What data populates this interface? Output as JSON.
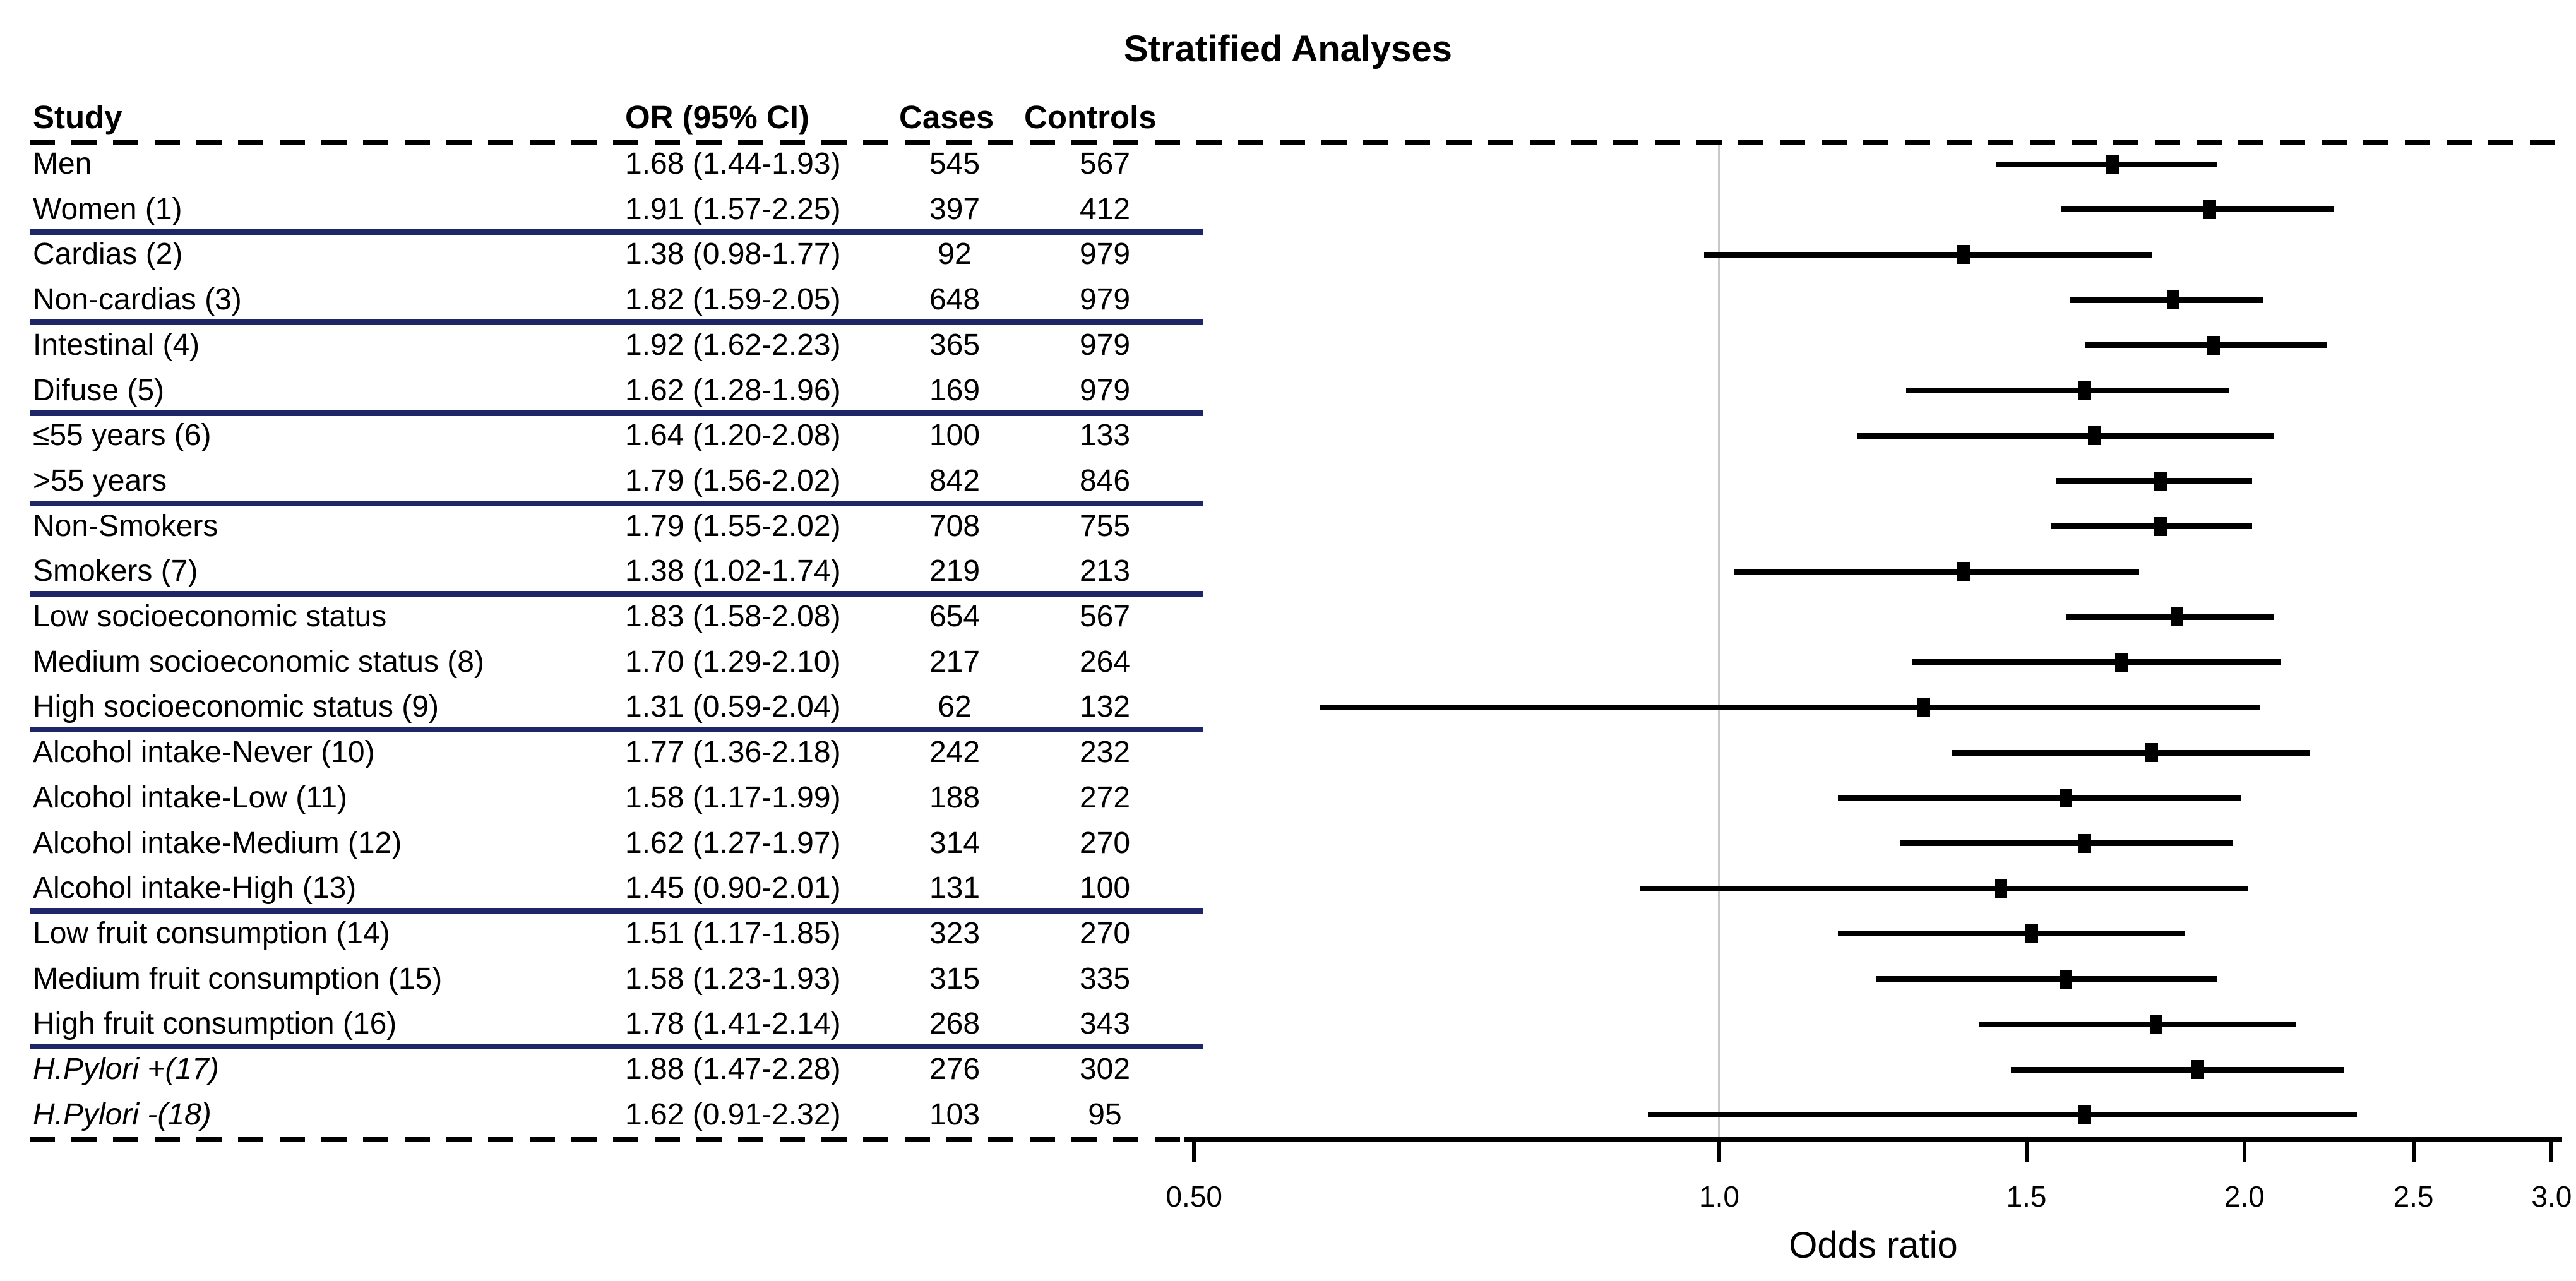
{
  "title": "Stratified Analyses",
  "columns": {
    "study": "Study",
    "or_ci": "OR (95% CI)",
    "cases": "Cases",
    "controls": "Controls"
  },
  "axis": {
    "label": "Odds ratio",
    "scale": "log",
    "min": 0.5,
    "max": 3.0,
    "reference_line": 1.0,
    "ticks": [
      {
        "value": 0.5,
        "label": "0.50"
      },
      {
        "value": 1.0,
        "label": "1.0"
      },
      {
        "value": 1.5,
        "label": "1.5"
      },
      {
        "value": 2.0,
        "label": "2.0"
      },
      {
        "value": 2.5,
        "label": "2.5"
      },
      {
        "value": 3.0,
        "label": "3.0"
      }
    ]
  },
  "colors": {
    "text": "#000000",
    "separator": "#1f2668",
    "reference_line": "#c8c8c8",
    "ci_line": "#000000",
    "marker": "#000000"
  },
  "chart_data": {
    "type": "forest",
    "title": "Stratified Analyses",
    "xlabel": "Odds ratio",
    "x_scale": "log",
    "xlim": [
      0.5,
      3.0
    ],
    "x_ticks": [
      0.5,
      1.0,
      1.5,
      2.0,
      2.5,
      3.0
    ],
    "reference_line": 1.0,
    "legend": "none",
    "rows": [
      {
        "label": "Men",
        "or": 1.68,
        "ci_low": 1.44,
        "ci_high": 1.93,
        "or_ci": "1.68 (1.44-1.93)",
        "cases": "545",
        "controls": "567",
        "italic": false,
        "separator_after": false
      },
      {
        "label": "Women (1)",
        "or": 1.91,
        "ci_low": 1.57,
        "ci_high": 2.25,
        "or_ci": "1.91 (1.57-2.25)",
        "cases": "397",
        "controls": "412",
        "italic": false,
        "separator_after": true
      },
      {
        "label": "Cardias (2)",
        "or": 1.38,
        "ci_low": 0.98,
        "ci_high": 1.77,
        "or_ci": "1.38 (0.98-1.77)",
        "cases": "92",
        "controls": "979",
        "italic": false,
        "separator_after": false
      },
      {
        "label": "Non-cardias (3)",
        "or": 1.82,
        "ci_low": 1.59,
        "ci_high": 2.05,
        "or_ci": "1.82 (1.59-2.05)",
        "cases": "648",
        "controls": "979",
        "italic": false,
        "separator_after": true
      },
      {
        "label": "Intestinal (4)",
        "or": 1.92,
        "ci_low": 1.62,
        "ci_high": 2.23,
        "or_ci": "1.92 (1.62-2.23)",
        "cases": "365",
        "controls": "979",
        "italic": false,
        "separator_after": false
      },
      {
        "label": "Difuse (5)",
        "or": 1.62,
        "ci_low": 1.28,
        "ci_high": 1.96,
        "or_ci": "1.62 (1.28-1.96)",
        "cases": "169",
        "controls": "979",
        "italic": false,
        "separator_after": true
      },
      {
        "label": "≤55 years (6)",
        "or": 1.64,
        "ci_low": 1.2,
        "ci_high": 2.08,
        "or_ci": "1.64 (1.20-2.08)",
        "cases": "100",
        "controls": "133",
        "italic": false,
        "separator_after": false
      },
      {
        "label": ">55 years",
        "or": 1.79,
        "ci_low": 1.56,
        "ci_high": 2.02,
        "or_ci": "1.79 (1.56-2.02)",
        "cases": "842",
        "controls": "846",
        "italic": false,
        "separator_after": true
      },
      {
        "label": "Non-Smokers",
        "or": 1.79,
        "ci_low": 1.55,
        "ci_high": 2.02,
        "or_ci": "1.79 (1.55-2.02)",
        "cases": "708",
        "controls": "755",
        "italic": false,
        "separator_after": false
      },
      {
        "label": "Smokers (7)",
        "or": 1.38,
        "ci_low": 1.02,
        "ci_high": 1.74,
        "or_ci": "1.38 (1.02-1.74)",
        "cases": "219",
        "controls": "213",
        "italic": false,
        "separator_after": true
      },
      {
        "label": "Low socioeconomic status",
        "or": 1.83,
        "ci_low": 1.58,
        "ci_high": 2.08,
        "or_ci": "1.83 (1.58-2.08)",
        "cases": "654",
        "controls": "567",
        "italic": false,
        "separator_after": false
      },
      {
        "label": "Medium socioeconomic status (8)",
        "or": 1.7,
        "ci_low": 1.29,
        "ci_high": 2.1,
        "or_ci": "1.70 (1.29-2.10)",
        "cases": "217",
        "controls": "264",
        "italic": false,
        "separator_after": false
      },
      {
        "label": "High socioeconomic status (9)",
        "or": 1.31,
        "ci_low": 0.59,
        "ci_high": 2.04,
        "or_ci": "1.31 (0.59-2.04)",
        "cases": "62",
        "controls": "132",
        "italic": false,
        "separator_after": true
      },
      {
        "label": "Alcohol intake-Never (10)",
        "or": 1.77,
        "ci_low": 1.36,
        "ci_high": 2.18,
        "or_ci": "1.77 (1.36-2.18)",
        "cases": "242",
        "controls": "232",
        "italic": false,
        "separator_after": false
      },
      {
        "label": "Alcohol intake-Low (11)",
        "or": 1.58,
        "ci_low": 1.17,
        "ci_high": 1.99,
        "or_ci": "1.58 (1.17-1.99)",
        "cases": "188",
        "controls": "272",
        "italic": false,
        "separator_after": false
      },
      {
        "label": "Alcohol intake-Medium (12)",
        "or": 1.62,
        "ci_low": 1.27,
        "ci_high": 1.97,
        "or_ci": "1.62 (1.27-1.97)",
        "cases": "314",
        "controls": "270",
        "italic": false,
        "separator_after": false
      },
      {
        "label": "Alcohol intake-High (13)",
        "or": 1.45,
        "ci_low": 0.9,
        "ci_high": 2.01,
        "or_ci": "1.45 (0.90-2.01)",
        "cases": "131",
        "controls": "100",
        "italic": false,
        "separator_after": true
      },
      {
        "label": "Low fruit consumption (14)",
        "or": 1.51,
        "ci_low": 1.17,
        "ci_high": 1.85,
        "or_ci": "1.51 (1.17-1.85)",
        "cases": "323",
        "controls": "270",
        "italic": false,
        "separator_after": false
      },
      {
        "label": "Medium fruit consumption (15)",
        "or": 1.58,
        "ci_low": 1.23,
        "ci_high": 1.93,
        "or_ci": "1.58 (1.23-1.93)",
        "cases": "315",
        "controls": "335",
        "italic": false,
        "separator_after": false
      },
      {
        "label": "High fruit consumption (16)",
        "or": 1.78,
        "ci_low": 1.41,
        "ci_high": 2.14,
        "or_ci": "1.78 (1.41-2.14)",
        "cases": "268",
        "controls": "343",
        "italic": false,
        "separator_after": true
      },
      {
        "label": "H.Pylori +(17)",
        "or": 1.88,
        "ci_low": 1.47,
        "ci_high": 2.28,
        "or_ci": "1.88 (1.47-2.28)",
        "cases": "276",
        "controls": "302",
        "italic": true,
        "separator_after": false
      },
      {
        "label": "H.Pylori -(18)",
        "or": 1.62,
        "ci_low": 0.91,
        "ci_high": 2.32,
        "or_ci": "1.62 (0.91-2.32)",
        "cases": "103",
        "controls": "95",
        "italic": true,
        "separator_after": false
      }
    ]
  }
}
